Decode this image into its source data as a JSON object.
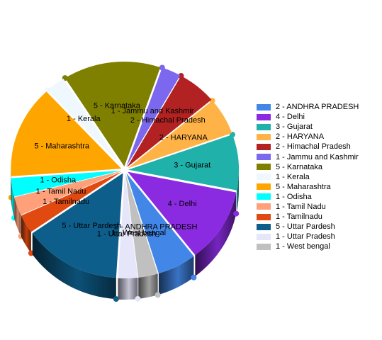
{
  "chart_data": {
    "type": "pie",
    "style": "3d-exploded",
    "legend_position": "right",
    "slices": [
      {
        "label": "2 - ANDHRA PRADESH",
        "value": 2,
        "color": "#4287E8"
      },
      {
        "label": "4 - Delhi",
        "value": 4,
        "color": "#8A2BE2"
      },
      {
        "label": "3 - Gujarat",
        "value": 3,
        "color": "#20B2AA"
      },
      {
        "label": "2 - HARYANA",
        "value": 2,
        "color": "#FFB347"
      },
      {
        "label": "2 - Himachal Pradesh",
        "value": 2,
        "color": "#B22222"
      },
      {
        "label": "1 - Jammu and Kashmir",
        "value": 1,
        "color": "#7B68EE"
      },
      {
        "label": "5 - Karnataka",
        "value": 5,
        "color": "#808000"
      },
      {
        "label": "1 - Kerala",
        "value": 1,
        "color": "#F0F8FF"
      },
      {
        "label": "5 - Maharashtra",
        "value": 5,
        "color": "#FFA500"
      },
      {
        "label": "1 - Odisha",
        "value": 1,
        "color": "#00FFFF"
      },
      {
        "label": "1 - Tamil Nadu",
        "value": 1,
        "color": "#FFA07A"
      },
      {
        "label": "1 - Tamilnadu",
        "value": 1,
        "color": "#E04A10"
      },
      {
        "label": "5 - Uttar Pardesh",
        "value": 5,
        "color": "#0E5E8C"
      },
      {
        "label": "1 - Uttar Pradesh",
        "value": 1,
        "color": "#E6E6FA"
      },
      {
        "label": "1 - West bengal",
        "value": 1,
        "color": "#C0C0C0"
      }
    ]
  }
}
